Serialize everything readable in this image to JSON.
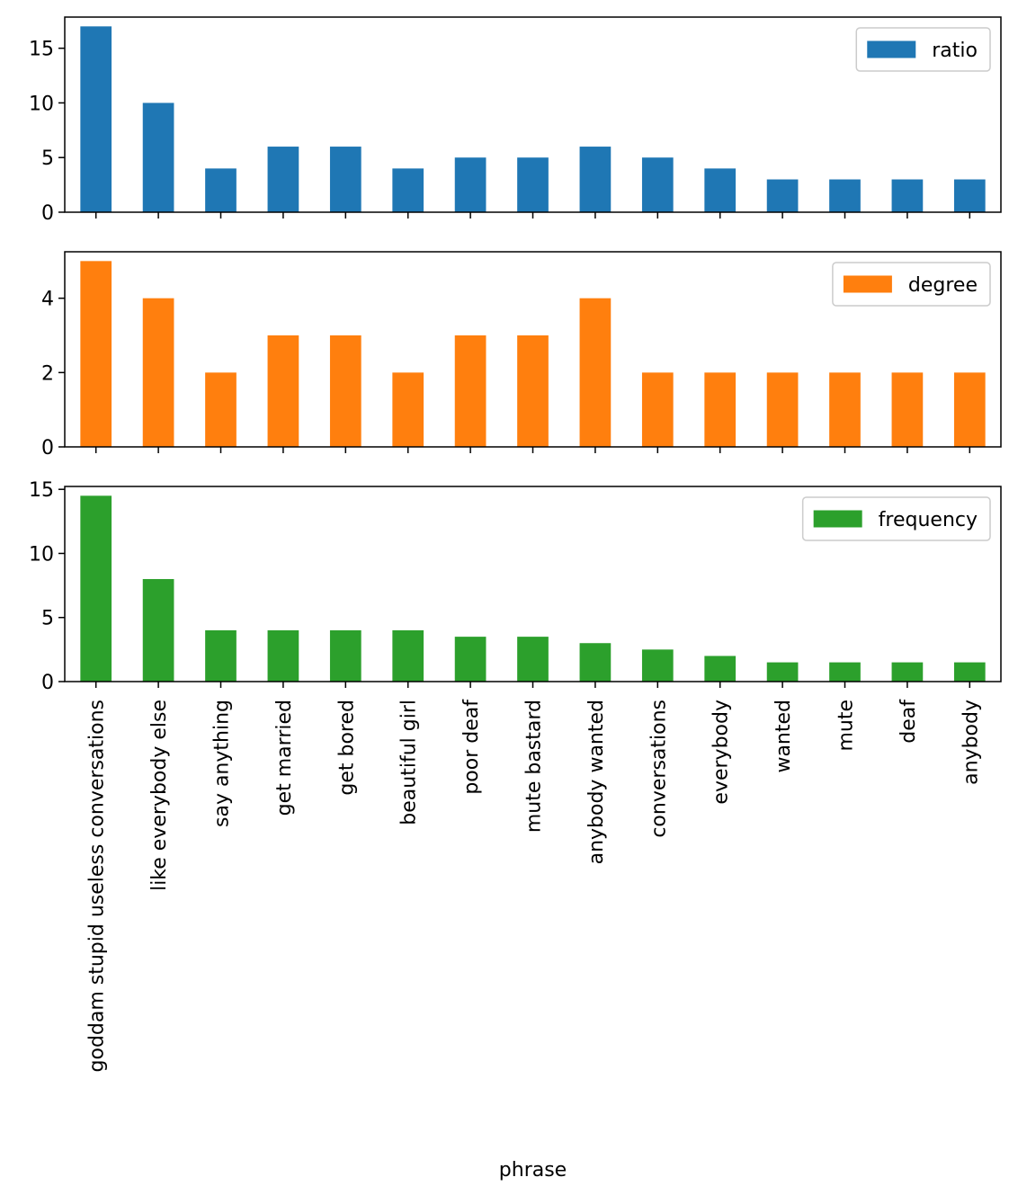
{
  "chart_data": {
    "type": "bar",
    "xlabel": "phrase",
    "categories": [
      "goddam stupid useless conversations",
      "like everybody else",
      "say anything",
      "get married",
      "get bored",
      "beautiful girl",
      "poor deaf",
      "mute bastard",
      "anybody wanted",
      "conversations",
      "everybody",
      "wanted",
      "mute",
      "deaf",
      "anybody"
    ],
    "subplots": [
      {
        "name": "ratio",
        "color": "#1f77b4",
        "values": [
          17,
          10,
          4,
          6,
          6,
          4,
          5,
          5,
          6,
          5,
          4,
          3,
          3,
          3,
          3
        ],
        "ylim": [
          0,
          17.85
        ],
        "yticks": [
          0,
          5,
          10,
          15
        ],
        "legend": "upper right",
        "show_xticklabels": false
      },
      {
        "name": "degree",
        "color": "#ff7f0e",
        "values": [
          5,
          4,
          2,
          3,
          3,
          2,
          3,
          3,
          4,
          2,
          2,
          2,
          2,
          2,
          2
        ],
        "ylim": [
          0,
          5.25
        ],
        "yticks": [
          0,
          2,
          4
        ],
        "legend": "upper right",
        "show_xticklabels": false
      },
      {
        "name": "frequency",
        "color": "#2ca02c",
        "values": [
          14.5,
          8,
          4,
          4,
          4,
          4,
          3.5,
          3.5,
          3,
          2.5,
          2,
          1.5,
          1.5,
          1.5,
          1.5
        ],
        "ylim": [
          0,
          15.225
        ],
        "yticks": [
          0,
          5,
          10,
          15
        ],
        "legend": "upper right",
        "show_xticklabels": true
      }
    ]
  }
}
